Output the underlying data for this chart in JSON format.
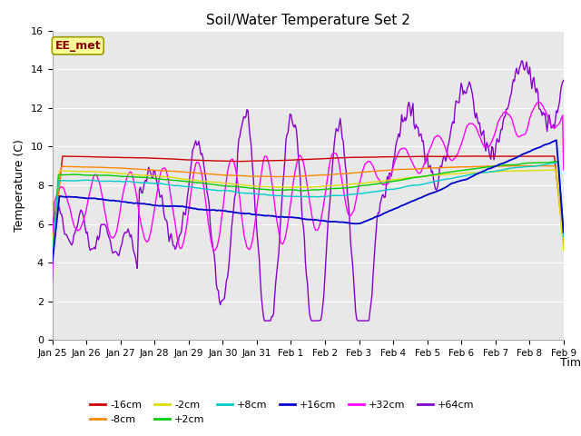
{
  "title": "Soil/Water Temperature Set 2",
  "xlabel": "Time",
  "ylabel": "Temperature (C)",
  "ylim": [
    0,
    16
  ],
  "yticks": [
    0,
    2,
    4,
    6,
    8,
    10,
    12,
    14,
    16
  ],
  "xtick_labels": [
    "Jan 25",
    "Jan 26",
    "Jan 27",
    "Jan 28",
    "Jan 29",
    "Jan 30",
    "Jan 31",
    "Feb 1",
    "Feb 2",
    "Feb 3",
    "Feb 4",
    "Feb 5",
    "Feb 6",
    "Feb 7",
    "Feb 8",
    "Feb 9"
  ],
  "series_colors": {
    "-16cm": "#cc0000",
    "-8cm": "#ff8800",
    "-2cm": "#dddd00",
    "+2cm": "#00cc00",
    "+8cm": "#00cccc",
    "+16cm": "#0000cc",
    "+32cm": "#ff00ff",
    "+64cm": "#8800cc"
  },
  "fig_bg": "#ffffff",
  "plot_bg": "#e8e8e8",
  "grid_color": "#ffffff",
  "annotation_text": "EE_met",
  "annotation_box_color": "#ffff99",
  "annotation_border_color": "#999900",
  "annotation_text_color": "#880000",
  "title_fontsize": 11,
  "axis_fontsize": 9,
  "tick_fontsize": 8,
  "legend_fontsize": 8
}
